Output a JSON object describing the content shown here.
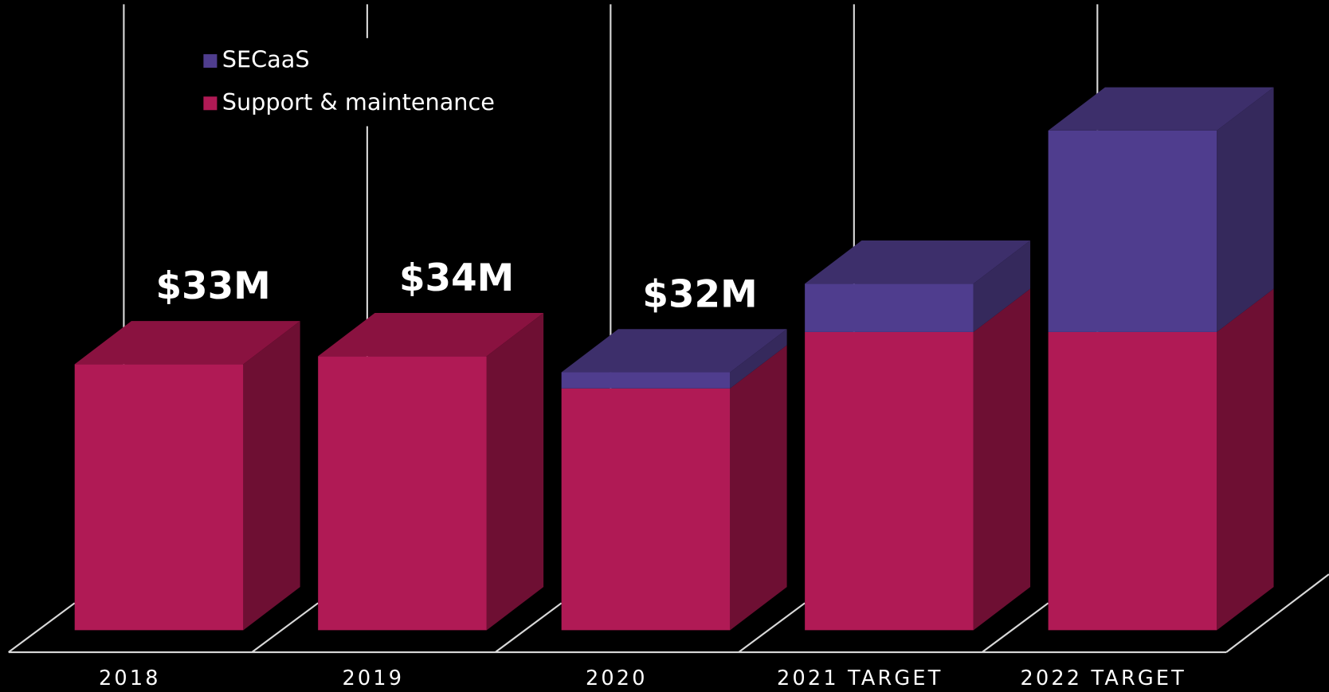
{
  "chart_data": {
    "type": "bar3d_stacked",
    "categories": [
      "2018",
      "2019",
      "2020",
      "2021 TARGET",
      "2022 TARGET"
    ],
    "series": [
      {
        "name": "Support & maintenance",
        "color": "#b01a55",
        "top_color": "#8a1240",
        "side_color": "#6e0f33",
        "values": [
          33,
          34,
          30,
          37,
          37
        ]
      },
      {
        "name": "SECaaS",
        "color": "#4f3d8e",
        "top_color": "#3d2f6b",
        "side_color": "#35295c",
        "values": [
          0,
          0,
          2,
          6,
          25
        ]
      }
    ],
    "annotations": [
      "$33M",
      "$34M",
      "$32M"
    ],
    "ylim": [
      0,
      70
    ]
  }
}
